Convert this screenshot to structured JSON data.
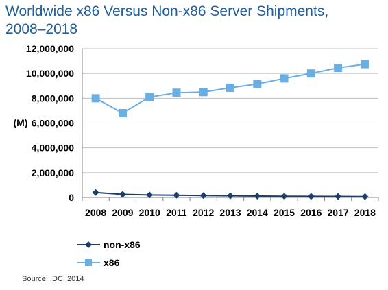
{
  "chart_data": {
    "type": "line",
    "title_lines": [
      "Worldwide x86 Versus Non-x86 Server Shipments,",
      "2008–2018"
    ],
    "ylabel": "(M)",
    "xlabel": "",
    "categories": [
      "2008",
      "2009",
      "2010",
      "2011",
      "2012",
      "2013",
      "2014",
      "2015",
      "2016",
      "2017",
      "2018"
    ],
    "yticks": [
      "0",
      "2,000,000",
      "4,000,000",
      "6,000,000",
      "8,000,000",
      "10,000,000",
      "12,000,000"
    ],
    "ylim": [
      0,
      12000000
    ],
    "grid": true,
    "legend_position": "bottom-left",
    "series": [
      {
        "name": "non-x86",
        "color": "#1b3f6b",
        "marker": "diamond",
        "values": [
          400000,
          250000,
          200000,
          180000,
          150000,
          130000,
          110000,
          100000,
          90000,
          80000,
          70000
        ]
      },
      {
        "name": "x86",
        "color": "#6aaee6",
        "marker": "square",
        "values": [
          8000000,
          6800000,
          8100000,
          8450000,
          8500000,
          8850000,
          9150000,
          9600000,
          10000000,
          10450000,
          10750000
        ]
      }
    ]
  },
  "source": "Source: IDC, 2014"
}
